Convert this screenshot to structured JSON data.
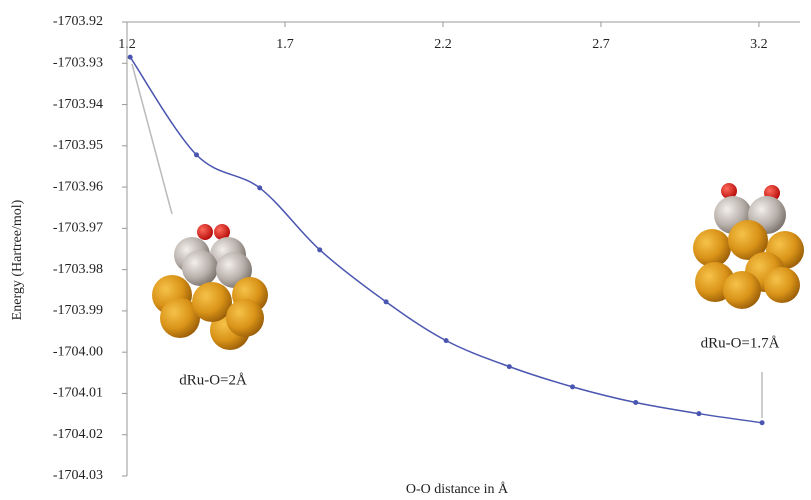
{
  "chart_data": {
    "type": "line",
    "x_label": "O-O distance in Å",
    "y_label": "Energy (Hartree/mol)",
    "x": [
      1.21,
      1.42,
      1.62,
      1.81,
      2.02,
      2.21,
      2.41,
      2.61,
      2.81,
      3.01,
      3.21
    ],
    "series": [
      {
        "color": "#4a56b0",
        "values": [
          -1703.9285,
          -1703.9522,
          -1703.9602,
          -1703.9752,
          -1703.9878,
          -1703.9972,
          -1704.0035,
          -1704.0084,
          -1704.0122,
          -1704.0149,
          -1704.0171
        ]
      }
    ],
    "xlim": [
      1.2,
      3.33
    ],
    "xticks": [
      1.2,
      1.7,
      2.2,
      2.7,
      3.2
    ],
    "ylim": [
      -1704.03,
      -1703.92
    ],
    "yticks": [
      -1703.92,
      -1703.93,
      -1703.94,
      -1703.95,
      -1703.96,
      -1703.97,
      -1703.98,
      -1703.99,
      {
        "value": -1704.0,
        "label": "-1704.00"
      },
      -1704.01,
      -1704.02,
      -1704.03
    ],
    "annotations": [
      "dRu-O=2Å",
      "dRu-O=1.7Å"
    ]
  }
}
